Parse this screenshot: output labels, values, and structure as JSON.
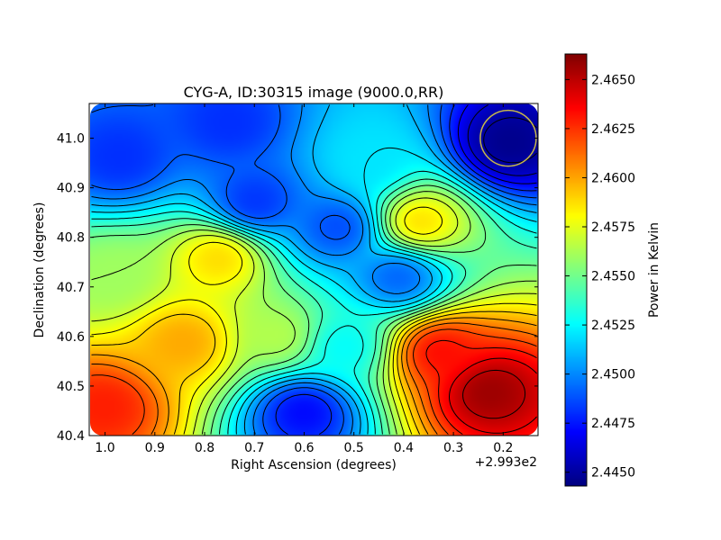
{
  "chart_data": {
    "type": "heatmap",
    "title": "CYG-A, ID:30315 image (9000.0,RR)",
    "xlabel": "Right Ascension (degrees)",
    "ylabel": "Declination (degrees)",
    "x_offset_label": "+2.993e2",
    "x_tick_labels": [
      "1.0",
      "0.9",
      "0.8",
      "0.7",
      "0.6",
      "0.5",
      "0.4",
      "0.3",
      "0.2"
    ],
    "x_tick_values": [
      1.0,
      0.9,
      0.8,
      0.7,
      0.6,
      0.5,
      0.4,
      0.3,
      0.2
    ],
    "y_tick_labels": [
      "40.4",
      "40.5",
      "40.6",
      "40.7",
      "40.8",
      "40.9",
      "41.0"
    ],
    "y_tick_values": [
      40.4,
      40.5,
      40.6,
      40.7,
      40.8,
      40.9,
      41.0
    ],
    "xlim": [
      1.03,
      0.13
    ],
    "ylim": [
      40.4,
      41.07
    ],
    "colorbar": {
      "label": "Power in Kelvin",
      "range": [
        2.4443,
        2.4663
      ],
      "tick_labels": [
        "2.4450",
        "2.4475",
        "2.4500",
        "2.4525",
        "2.4550",
        "2.4575",
        "2.4600",
        "2.4625",
        "2.4650"
      ],
      "tick_values": [
        2.445,
        2.4475,
        2.45,
        2.4525,
        2.455,
        2.4575,
        2.46,
        2.4625,
        2.465
      ]
    },
    "colormap": "jet",
    "contours": true,
    "beam_circle": {
      "x": 0.19,
      "y": 41.0,
      "color": "#c8b84a"
    },
    "features": [
      {
        "x": 0.23,
        "y": 40.49,
        "value": 2.4658
      },
      {
        "x": 0.33,
        "y": 40.57,
        "value": 2.4635
      },
      {
        "x": 1.0,
        "y": 40.46,
        "value": 2.463
      },
      {
        "x": 0.84,
        "y": 40.59,
        "value": 2.46
      },
      {
        "x": 0.77,
        "y": 40.76,
        "value": 2.459
      },
      {
        "x": 0.37,
        "y": 40.83,
        "value": 2.459
      },
      {
        "x": 0.65,
        "y": 40.6,
        "value": 2.4565
      },
      {
        "x": 0.98,
        "y": 40.72,
        "value": 2.456
      },
      {
        "x": 0.6,
        "y": 40.45,
        "value": 2.447
      },
      {
        "x": 0.19,
        "y": 40.99,
        "value": 2.4445
      },
      {
        "x": 0.75,
        "y": 41.03,
        "value": 2.448
      },
      {
        "x": 0.97,
        "y": 40.96,
        "value": 2.448
      },
      {
        "x": 0.53,
        "y": 40.82,
        "value": 2.4485
      },
      {
        "x": 0.41,
        "y": 40.72,
        "value": 2.449
      },
      {
        "x": 0.7,
        "y": 40.87,
        "value": 2.448
      },
      {
        "x": 0.52,
        "y": 40.58,
        "value": 2.4525
      },
      {
        "x": 0.47,
        "y": 40.95,
        "value": 2.452
      }
    ]
  }
}
